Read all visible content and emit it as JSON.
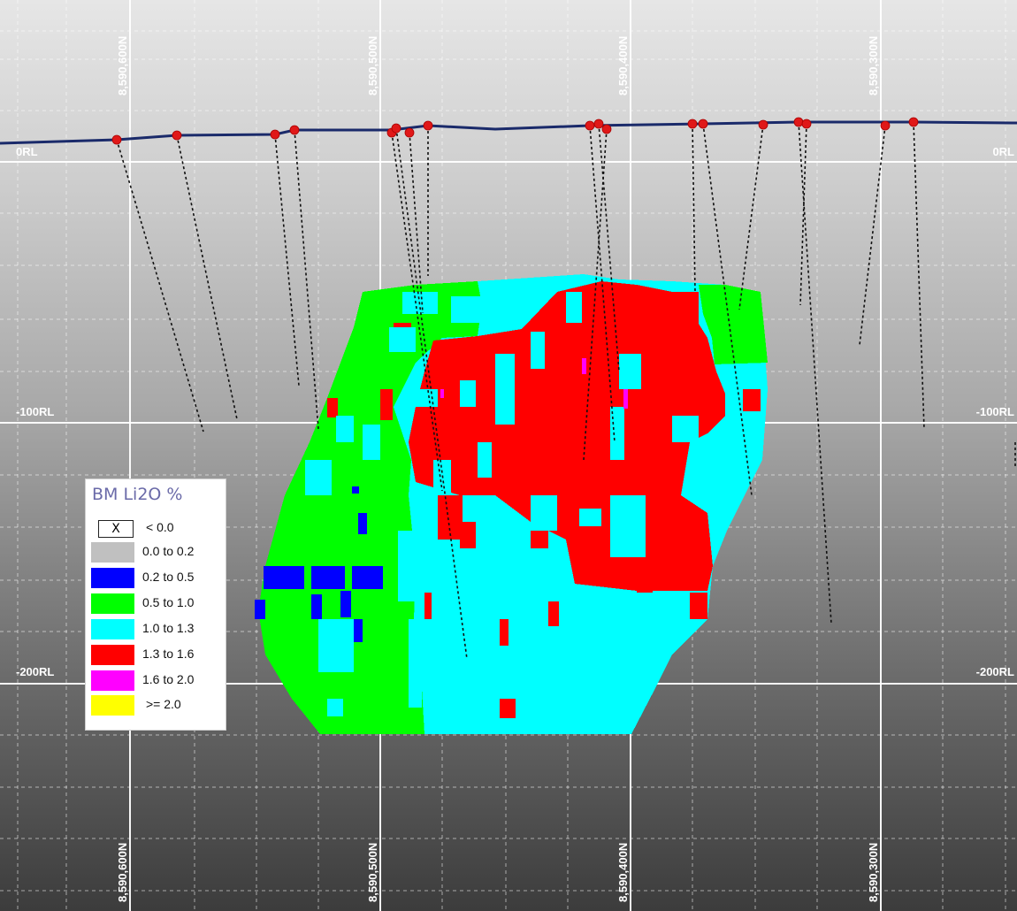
{
  "section": {
    "northings": [
      "8,590,600N",
      "8,590,500N",
      "8,590,400N",
      "8,590,300N"
    ],
    "rl_labels": [
      "0RL",
      "-100RL",
      "-200RL"
    ],
    "colors": {
      "0.0 to 0.2": "#c0c0c0",
      "0.2 to 0.5": "#0000ff",
      "0.5 to 1.0": "#00ff00",
      "1.0 to 1.3": "#00ffff",
      "1.3 to 1.6": "#ff0000",
      "1.6 to 2.0": "#ff00ff",
      ">= 2.0": "#ffff00"
    }
  },
  "legend": {
    "title": "BM Li2O %",
    "null_symbol": "X",
    "items": [
      {
        "label": "< 0.0",
        "color": "#ffffff"
      },
      {
        "label": "0.0 to 0.2",
        "color": "#c0c0c0"
      },
      {
        "label": "0.2 to 0.5",
        "color": "#0000ff"
      },
      {
        "label": "0.5 to 1.0",
        "color": "#00ff00"
      },
      {
        "label": "1.0 to 1.3",
        "color": "#00ffff"
      },
      {
        "label": "1.3 to 1.6",
        "color": "#ff0000"
      },
      {
        "label": "1.6 to 2.0",
        "color": "#ff00ff"
      },
      {
        "label": ">= 2.0",
        "color": "#ffff00"
      }
    ]
  }
}
